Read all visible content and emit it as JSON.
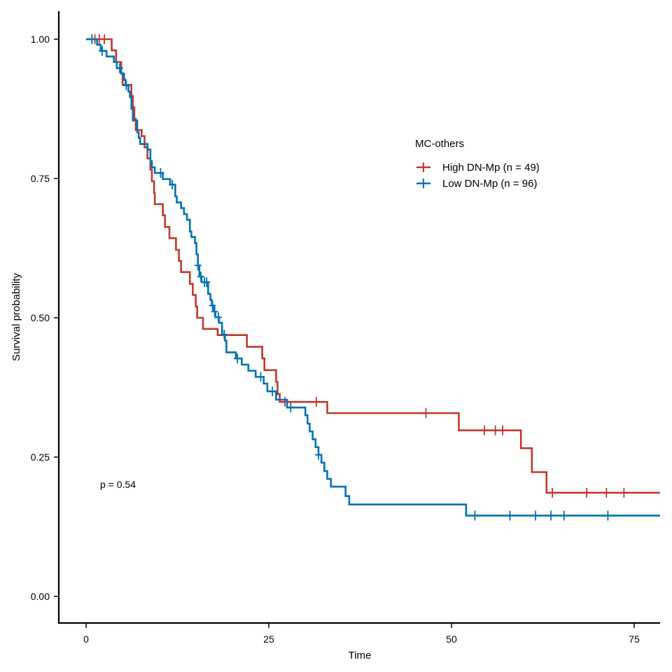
{
  "chart_data": {
    "type": "line",
    "subtype": "kaplan-meier-step",
    "xlabel": "Time",
    "ylabel": "Survival probability",
    "xlim": [
      -7.5,
      79
    ],
    "ylim": [
      -0.05,
      1.05
    ],
    "x_ticks": [
      0,
      25,
      50,
      75
    ],
    "x_tick_labels": [
      "0",
      "25",
      "50",
      "75"
    ],
    "y_ticks": [
      0,
      0.25,
      0.5,
      0.75,
      1
    ],
    "y_tick_labels": [
      "0.00",
      "0.25",
      "0.50",
      "0.75",
      "1.00"
    ],
    "grid": false,
    "legend": {
      "title": "MC-others",
      "position": "upper-right-inside"
    },
    "annotation": "p = 0.54",
    "series": [
      {
        "name": "High DN-Mp (n = 49)",
        "color": "#C0392B",
        "steps": [
          [
            0,
            1.0
          ],
          [
            3.5,
            0.98
          ],
          [
            4.1,
            0.959
          ],
          [
            4.8,
            0.939
          ],
          [
            5.0,
            0.918
          ],
          [
            6.2,
            0.898
          ],
          [
            6.4,
            0.878
          ],
          [
            6.6,
            0.857
          ],
          [
            6.8,
            0.837
          ],
          [
            7.6,
            0.826
          ],
          [
            8.0,
            0.806
          ],
          [
            8.4,
            0.786
          ],
          [
            8.8,
            0.766
          ],
          [
            9.0,
            0.745
          ],
          [
            9.3,
            0.724
          ],
          [
            9.4,
            0.704
          ],
          [
            10.5,
            0.684
          ],
          [
            10.8,
            0.663
          ],
          [
            11.4,
            0.643
          ],
          [
            12.3,
            0.622
          ],
          [
            12.7,
            0.602
          ],
          [
            13.0,
            0.582
          ],
          [
            14.2,
            0.561
          ],
          [
            14.6,
            0.541
          ],
          [
            15.0,
            0.52
          ],
          [
            15.2,
            0.5
          ],
          [
            16.0,
            0.48
          ],
          [
            18.0,
            0.469
          ],
          [
            22.0,
            0.448
          ],
          [
            24.1,
            0.427
          ],
          [
            24.4,
            0.406
          ],
          [
            26.0,
            0.385
          ],
          [
            26.2,
            0.363
          ],
          [
            26.5,
            0.349
          ],
          [
            33.0,
            0.329
          ],
          [
            51.0,
            0.298
          ],
          [
            59.5,
            0.266
          ],
          [
            61.0,
            0.223
          ],
          [
            63.0,
            0.186
          ]
        ],
        "end_x": 79,
        "censor_times": [
          1.2,
          1.8,
          2.5,
          27.2,
          31.5,
          46.5,
          54.5,
          56.0,
          57.0,
          63.8,
          68.5,
          71.2,
          73.6
        ]
      },
      {
        "name": "Low DN-Mp (n = 96)",
        "color": "#0072B5",
        "steps": [
          [
            0,
            1.0
          ],
          [
            1.5,
            0.99
          ],
          [
            2.0,
            0.979
          ],
          [
            2.8,
            0.969
          ],
          [
            3.8,
            0.959
          ],
          [
            4.2,
            0.948
          ],
          [
            4.8,
            0.938
          ],
          [
            5.2,
            0.927
          ],
          [
            5.4,
            0.917
          ],
          [
            5.8,
            0.906
          ],
          [
            6.0,
            0.896
          ],
          [
            6.2,
            0.875
          ],
          [
            6.4,
            0.854
          ],
          [
            7.0,
            0.833
          ],
          [
            7.2,
            0.823
          ],
          [
            7.4,
            0.812
          ],
          [
            8.4,
            0.802
          ],
          [
            8.8,
            0.781
          ],
          [
            9.0,
            0.77
          ],
          [
            9.4,
            0.76
          ],
          [
            10.5,
            0.749
          ],
          [
            11.5,
            0.739
          ],
          [
            12.2,
            0.718
          ],
          [
            12.4,
            0.707
          ],
          [
            13.0,
            0.697
          ],
          [
            13.4,
            0.686
          ],
          [
            13.8,
            0.676
          ],
          [
            14.2,
            0.655
          ],
          [
            14.4,
            0.645
          ],
          [
            14.9,
            0.634
          ],
          [
            15.1,
            0.614
          ],
          [
            15.3,
            0.594
          ],
          [
            15.5,
            0.574
          ],
          [
            15.8,
            0.564
          ],
          [
            16.7,
            0.543
          ],
          [
            17.0,
            0.532
          ],
          [
            17.2,
            0.522
          ],
          [
            17.5,
            0.511
          ],
          [
            17.7,
            0.501
          ],
          [
            18.2,
            0.491
          ],
          [
            18.6,
            0.47
          ],
          [
            19.0,
            0.459
          ],
          [
            19.2,
            0.438
          ],
          [
            20.5,
            0.427
          ],
          [
            21.3,
            0.416
          ],
          [
            22.2,
            0.405
          ],
          [
            23.2,
            0.394
          ],
          [
            24.3,
            0.382
          ],
          [
            24.8,
            0.368
          ],
          [
            26.0,
            0.353
          ],
          [
            27.5,
            0.339
          ],
          [
            30.0,
            0.325
          ],
          [
            30.3,
            0.31
          ],
          [
            30.6,
            0.296
          ],
          [
            31.0,
            0.282
          ],
          [
            31.4,
            0.268
          ],
          [
            31.8,
            0.254
          ],
          [
            32.2,
            0.24
          ],
          [
            32.6,
            0.225
          ],
          [
            33.0,
            0.211
          ],
          [
            33.5,
            0.197
          ],
          [
            35.5,
            0.18
          ],
          [
            36.0,
            0.165
          ],
          [
            52.0,
            0.145
          ]
        ],
        "end_x": 79,
        "censor_times": [
          0.8,
          2.2,
          4.6,
          5.5,
          10.2,
          11.8,
          15.3,
          15.7,
          16.2,
          16.5,
          17.3,
          17.6,
          18.1,
          18.9,
          20.7,
          23.9,
          25.5,
          28.0,
          31.8,
          53.2,
          58.0,
          61.5,
          63.6,
          65.4,
          71.4
        ]
      }
    ]
  }
}
